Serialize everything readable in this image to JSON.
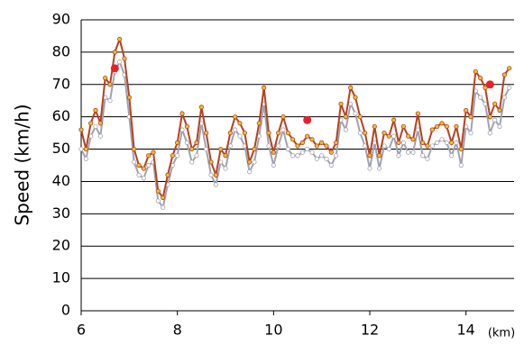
{
  "chart_data": {
    "type": "line",
    "ylabel": "Speed (km/h)",
    "xlabel": "(km)",
    "xlim": [
      6,
      15
    ],
    "xticks": [
      6,
      8,
      10,
      12,
      14
    ],
    "ylim": [
      0,
      90
    ],
    "yticks": [
      0,
      10,
      20,
      30,
      40,
      50,
      60,
      70,
      80,
      90
    ],
    "grid": true,
    "x": [
      6.0,
      6.1,
      6.2,
      6.3,
      6.4,
      6.5,
      6.6,
      6.7,
      6.8,
      6.9,
      7.0,
      7.1,
      7.2,
      7.3,
      7.4,
      7.5,
      7.6,
      7.7,
      7.8,
      7.9,
      8.0,
      8.1,
      8.2,
      8.3,
      8.4,
      8.5,
      8.6,
      8.7,
      8.8,
      8.9,
      9.0,
      9.1,
      9.2,
      9.3,
      9.4,
      9.5,
      9.6,
      9.7,
      9.8,
      9.9,
      10.0,
      10.1,
      10.2,
      10.3,
      10.4,
      10.5,
      10.6,
      10.7,
      10.8,
      10.9,
      11.0,
      11.1,
      11.2,
      11.3,
      11.4,
      11.5,
      11.6,
      11.7,
      11.8,
      11.9,
      12.0,
      12.1,
      12.2,
      12.3,
      12.4,
      12.5,
      12.6,
      12.7,
      12.8,
      12.9,
      13.0,
      13.1,
      13.2,
      13.3,
      13.4,
      13.5,
      13.6,
      13.7,
      13.8,
      13.9,
      14.0,
      14.1,
      14.2,
      14.3,
      14.4,
      14.5,
      14.6,
      14.7,
      14.8,
      14.9
    ],
    "series": [
      {
        "color": "#9ea3b0",
        "marker_fill": "#ffffff",
        "values": [
          50,
          47,
          54,
          57,
          54,
          66,
          65,
          74,
          77,
          73,
          60,
          46,
          42,
          41,
          45,
          46,
          34,
          32,
          39,
          45,
          48,
          56,
          52,
          46,
          48,
          58,
          50,
          42,
          39,
          46,
          44,
          51,
          56,
          54,
          51,
          43,
          46,
          54,
          64,
          51,
          45,
          51,
          56,
          50,
          48,
          48,
          49,
          50,
          49,
          47,
          48,
          47,
          45,
          48,
          59,
          56,
          64,
          61,
          55,
          51,
          44,
          52,
          44,
          51,
          50,
          54,
          48,
          52,
          49,
          49,
          56,
          48,
          47,
          51,
          52,
          53,
          52,
          48,
          52,
          45,
          57,
          55,
          68,
          66,
          64,
          55,
          59,
          57,
          66,
          69
        ]
      },
      {
        "color": "#b8401e",
        "marker_fill": "#e8c038",
        "values": [
          56,
          50,
          58,
          62,
          58,
          72,
          70,
          80,
          84,
          78,
          66,
          50,
          45,
          44,
          48,
          49,
          37,
          35,
          42,
          48,
          52,
          61,
          57,
          50,
          52,
          63,
          55,
          46,
          42,
          50,
          48,
          55,
          60,
          58,
          55,
          46,
          50,
          58,
          69,
          55,
          49,
          55,
          60,
          55,
          53,
          51,
          52,
          54,
          53,
          51,
          52,
          51,
          49,
          52,
          64,
          60,
          69,
          66,
          60,
          55,
          48,
          57,
          48,
          55,
          54,
          59,
          52,
          57,
          54,
          53,
          61,
          52,
          51,
          56,
          57,
          58,
          57,
          52,
          57,
          50,
          62,
          60,
          74,
          72,
          69,
          60,
          64,
          62,
          73,
          75
        ]
      },
      {
        "type": "scatter",
        "color": "#e8202a",
        "x": [
          6.7,
          10.7,
          14.5
        ],
        "values": [
          75,
          59,
          70
        ]
      }
    ]
  }
}
